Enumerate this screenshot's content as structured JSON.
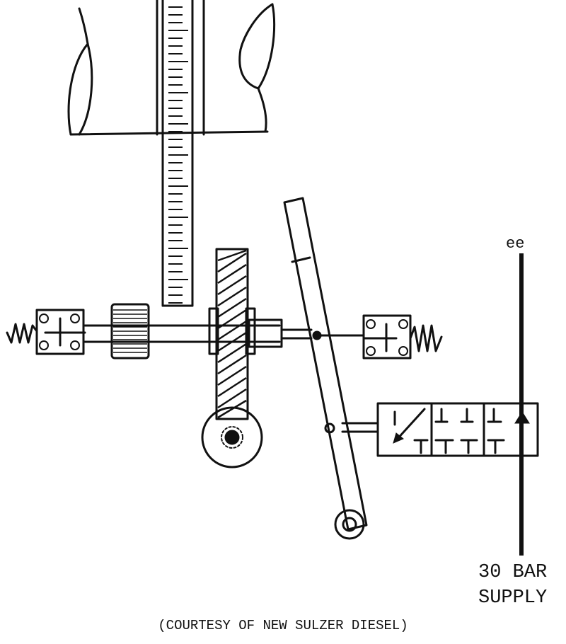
{
  "labels": {
    "line_ee": "ee",
    "supply_line1": "30 BAR",
    "supply_line2": "SUPPLY",
    "credit": "(COURTESY OF NEW SULZER DIESEL)"
  },
  "colors": {
    "ink": "#111111",
    "background": "#ffffff"
  }
}
